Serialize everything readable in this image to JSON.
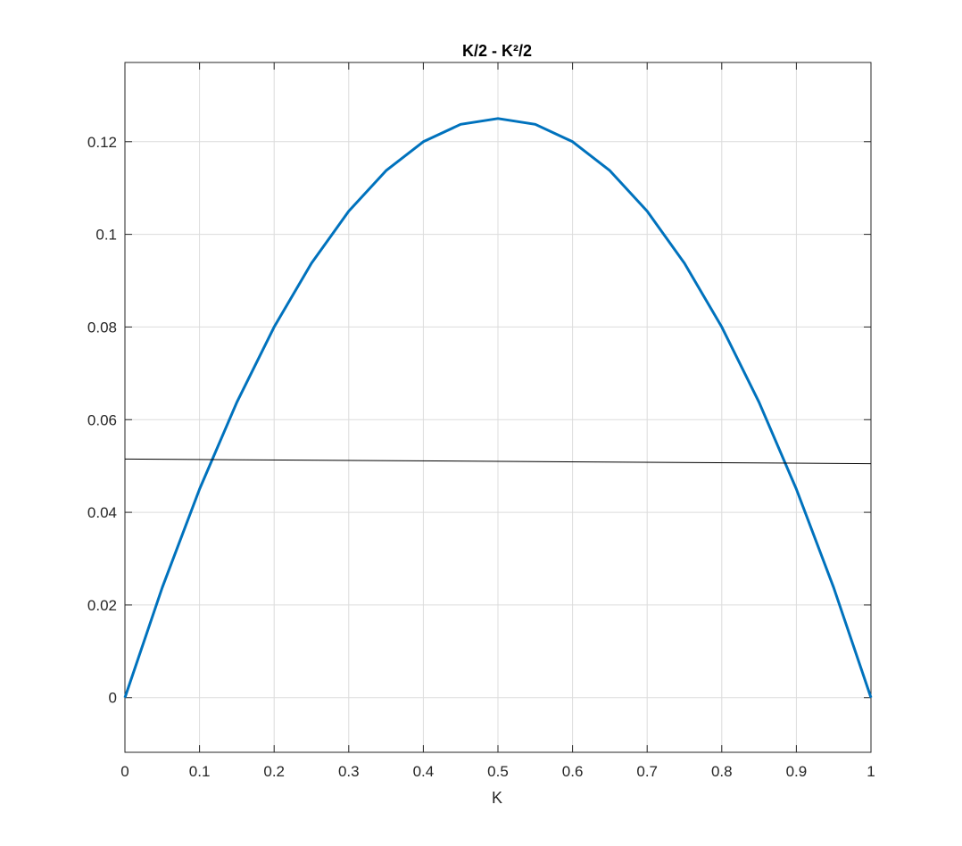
{
  "chart_data": {
    "type": "line",
    "title": "K/2 - K²/2",
    "xlabel": "K",
    "series": [
      {
        "color": "#0072bd",
        "width": 3,
        "x": [
          0,
          0.05,
          0.1,
          0.15,
          0.2,
          0.25,
          0.3,
          0.35,
          0.4,
          0.45,
          0.5,
          0.55,
          0.6,
          0.65,
          0.7,
          0.75,
          0.8,
          0.85,
          0.9,
          0.95,
          1
        ],
        "values": [
          0,
          0.02375,
          0.045,
          0.06375,
          0.08,
          0.09375,
          0.105,
          0.11375,
          0.12,
          0.12375,
          0.125,
          0.12375,
          0.12,
          0.11375,
          0.105,
          0.09375,
          0.08,
          0.06375,
          0.045,
          0.02375,
          0
        ]
      },
      {
        "color": "#000000",
        "width": 1,
        "x": [
          0,
          1
        ],
        "values": [
          0.0515,
          0.0505
        ]
      }
    ],
    "xlim": [
      0,
      1
    ],
    "xticks": [
      0,
      0.1,
      0.2,
      0.3,
      0.4,
      0.5,
      0.6,
      0.7,
      0.8,
      0.9,
      1
    ],
    "ylim": [
      -0.0118,
      0.1371
    ],
    "yticks": [
      0,
      0.02,
      0.04,
      0.06,
      0.08,
      0.1,
      0.12
    ],
    "grid": true
  }
}
